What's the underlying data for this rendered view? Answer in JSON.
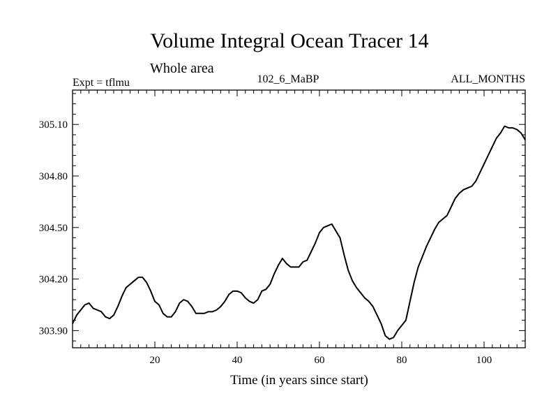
{
  "header": {
    "title": "Volume Integral Ocean Tracer 14",
    "subtitle": "Whole area",
    "left": "Expt = tflmu",
    "center": "102_6_MaBP",
    "right": "ALL_MONTHS"
  },
  "chart_data": {
    "type": "line",
    "title": "Volume Integral Ocean Tracer 14",
    "subtitle": "Whole area",
    "xlabel": "Time (in years since start)",
    "ylabel": "",
    "xlim": [
      0,
      110
    ],
    "ylim": [
      303.8,
      305.3
    ],
    "x_ticks": [
      20,
      40,
      60,
      80,
      100
    ],
    "x_tick_labels": [
      "20",
      "40",
      "60",
      "80",
      "100"
    ],
    "y_ticks": [
      303.9,
      304.2,
      304.5,
      304.8,
      305.1
    ],
    "y_tick_labels": [
      "303.90",
      "304.20",
      "304.50",
      "304.80",
      "305.10"
    ],
    "grid": false,
    "series": [
      {
        "color": "#000000",
        "x": [
          0,
          1,
          2,
          3,
          4,
          5,
          6,
          7,
          8,
          9,
          10,
          11,
          12,
          13,
          14,
          15,
          16,
          17,
          18,
          19,
          20,
          21,
          22,
          23,
          24,
          25,
          26,
          27,
          28,
          29,
          30,
          31,
          32,
          33,
          34,
          35,
          36,
          37,
          38,
          39,
          40,
          41,
          42,
          43,
          44,
          45,
          46,
          47,
          48,
          49,
          50,
          51,
          52,
          53,
          54,
          55,
          56,
          57,
          58,
          59,
          60,
          61,
          62,
          63,
          64,
          65,
          66,
          67,
          68,
          69,
          70,
          71,
          72,
          73,
          74,
          75,
          76,
          77,
          78,
          79,
          80,
          81,
          82,
          83,
          84,
          85,
          86,
          87,
          88,
          89,
          90,
          91,
          92,
          93,
          94,
          95,
          96,
          97,
          98,
          99,
          100,
          101,
          102,
          103,
          104,
          105,
          106,
          107,
          108,
          109,
          110
        ],
        "y": [
          303.94,
          303.99,
          304.02,
          304.05,
          304.06,
          304.03,
          304.02,
          304.01,
          303.98,
          303.97,
          303.99,
          304.04,
          304.1,
          304.15,
          304.17,
          304.19,
          304.21,
          304.21,
          304.18,
          304.13,
          304.07,
          304.05,
          304.0,
          303.98,
          303.98,
          304.01,
          304.06,
          304.08,
          304.07,
          304.04,
          304.0,
          304.0,
          304.0,
          304.01,
          304.01,
          304.02,
          304.04,
          304.07,
          304.11,
          304.13,
          304.13,
          304.12,
          304.09,
          304.07,
          304.06,
          304.08,
          304.13,
          304.14,
          304.17,
          304.23,
          304.28,
          304.32,
          304.29,
          304.27,
          304.27,
          304.27,
          304.3,
          304.31,
          304.36,
          304.41,
          304.47,
          304.5,
          304.51,
          304.52,
          304.48,
          304.44,
          304.34,
          304.25,
          304.19,
          304.15,
          304.12,
          304.09,
          304.07,
          304.04,
          303.99,
          303.94,
          303.87,
          303.85,
          303.86,
          303.9,
          303.93,
          303.96,
          304.07,
          304.18,
          304.27,
          304.33,
          304.39,
          304.44,
          304.49,
          304.53,
          304.55,
          304.57,
          304.62,
          304.67,
          304.7,
          304.72,
          304.73,
          304.74,
          304.77,
          304.82,
          304.87,
          304.92,
          304.97,
          305.02,
          305.05,
          305.09,
          305.08,
          305.08,
          305.07,
          305.05,
          305.01
        ]
      }
    ]
  }
}
